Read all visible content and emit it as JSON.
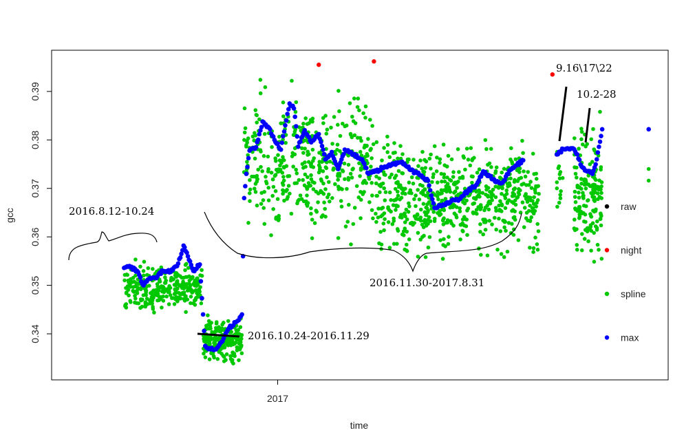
{
  "chart_data": {
    "type": "scatter",
    "title": "",
    "xlabel": "time",
    "ylabel": "gcc",
    "xlim": [
      "2016-06-06",
      "2017-12-28"
    ],
    "ylim": [
      0.3305,
      0.3985
    ],
    "x_ticks": [
      {
        "date": "2017-01-01",
        "label": "2017"
      }
    ],
    "y_ticks": [
      {
        "value": 0.34,
        "label": "0.34"
      },
      {
        "value": 0.35,
        "label": "0.35"
      },
      {
        "value": 0.36,
        "label": "0.36"
      },
      {
        "value": 0.37,
        "label": "0.37"
      },
      {
        "value": 0.38,
        "label": "0.38"
      },
      {
        "value": 0.39,
        "label": "0.39"
      }
    ],
    "grid": false,
    "legend": {
      "position": "right",
      "entries": [
        {
          "name": "raw",
          "color": "#000000"
        },
        {
          "name": "night",
          "color": "#ff0000"
        },
        {
          "name": "spline",
          "color": "#00c800"
        },
        {
          "name": "max",
          "color": "#0000ff"
        }
      ]
    },
    "colors": {
      "raw": "#000000",
      "night": "#ff0000",
      "spline": "#00c800",
      "max": "#0000ff"
    },
    "series": [
      {
        "name": "night",
        "points": [
          {
            "x": "2017-02-08",
            "y": 0.3955
          },
          {
            "x": "2017-03-31",
            "y": 0.3962
          },
          {
            "x": "2017-09-12",
            "y": 0.3935
          }
        ]
      },
      {
        "name": "max",
        "points": [
          {
            "x": "2016-08-12",
            "y": 0.3536
          },
          {
            "x": "2016-08-18",
            "y": 0.3537
          },
          {
            "x": "2016-08-24",
            "y": 0.353
          },
          {
            "x": "2016-08-30",
            "y": 0.35
          },
          {
            "x": "2016-09-03",
            "y": 0.3512
          },
          {
            "x": "2016-09-10",
            "y": 0.3515
          },
          {
            "x": "2016-09-17",
            "y": 0.353
          },
          {
            "x": "2016-09-24",
            "y": 0.3528
          },
          {
            "x": "2016-10-01",
            "y": 0.3545
          },
          {
            "x": "2016-10-06",
            "y": 0.3582
          },
          {
            "x": "2016-10-10",
            "y": 0.356
          },
          {
            "x": "2016-10-15",
            "y": 0.353
          },
          {
            "x": "2016-10-21",
            "y": 0.3543
          },
          {
            "x": "2016-10-26",
            "y": 0.3375
          },
          {
            "x": "2016-10-31",
            "y": 0.3368
          },
          {
            "x": "2016-11-05",
            "y": 0.3368
          },
          {
            "x": "2016-11-11",
            "y": 0.3385
          },
          {
            "x": "2016-11-17",
            "y": 0.3412
          },
          {
            "x": "2016-11-24",
            "y": 0.3425
          },
          {
            "x": "2016-11-29",
            "y": 0.344
          },
          {
            "x": "2016-12-01",
            "y": 0.368
          },
          {
            "x": "2016-12-03",
            "y": 0.373
          },
          {
            "x": "2016-12-06",
            "y": 0.3778
          },
          {
            "x": "2016-12-12",
            "y": 0.3785
          },
          {
            "x": "2016-12-18",
            "y": 0.3838
          },
          {
            "x": "2016-12-24",
            "y": 0.3825
          },
          {
            "x": "2016-12-29",
            "y": 0.38
          },
          {
            "x": "2017-01-04",
            "y": 0.378
          },
          {
            "x": "2017-01-08",
            "y": 0.383
          },
          {
            "x": "2017-01-12",
            "y": 0.3875
          },
          {
            "x": "2017-01-16",
            "y": 0.3865
          },
          {
            "x": "2017-01-20",
            "y": 0.3786
          },
          {
            "x": "2017-01-26",
            "y": 0.382
          },
          {
            "x": "2017-02-01",
            "y": 0.3795
          },
          {
            "x": "2017-02-08",
            "y": 0.3812
          },
          {
            "x": "2017-02-14",
            "y": 0.376
          },
          {
            "x": "2017-02-20",
            "y": 0.3775
          },
          {
            "x": "2017-02-26",
            "y": 0.374
          },
          {
            "x": "2017-03-04",
            "y": 0.378
          },
          {
            "x": "2017-03-12",
            "y": 0.377
          },
          {
            "x": "2017-03-20",
            "y": 0.376
          },
          {
            "x": "2017-03-26",
            "y": 0.373
          },
          {
            "x": "2017-04-02",
            "y": 0.3735
          },
          {
            "x": "2017-04-10",
            "y": 0.3745
          },
          {
            "x": "2017-04-18",
            "y": 0.375
          },
          {
            "x": "2017-04-26",
            "y": 0.3755
          },
          {
            "x": "2017-05-04",
            "y": 0.3738
          },
          {
            "x": "2017-05-12",
            "y": 0.3728
          },
          {
            "x": "2017-05-20",
            "y": 0.3716
          },
          {
            "x": "2017-05-26",
            "y": 0.366
          },
          {
            "x": "2017-06-02",
            "y": 0.3664
          },
          {
            "x": "2017-06-10",
            "y": 0.3673
          },
          {
            "x": "2017-06-18",
            "y": 0.3678
          },
          {
            "x": "2017-06-26",
            "y": 0.3695
          },
          {
            "x": "2017-07-04",
            "y": 0.3708
          },
          {
            "x": "2017-07-10",
            "y": 0.3735
          },
          {
            "x": "2017-07-16",
            "y": 0.3725
          },
          {
            "x": "2017-07-22",
            "y": 0.3713
          },
          {
            "x": "2017-07-28",
            "y": 0.3712
          },
          {
            "x": "2017-08-04",
            "y": 0.3738
          },
          {
            "x": "2017-08-10",
            "y": 0.3748
          },
          {
            "x": "2017-08-16",
            "y": 0.3758
          },
          {
            "x": "2017-09-16",
            "y": 0.377
          },
          {
            "x": "2017-09-22",
            "y": 0.3781
          },
          {
            "x": "2017-10-02",
            "y": 0.3781
          },
          {
            "x": "2017-10-05",
            "y": 0.377
          },
          {
            "x": "2017-10-09",
            "y": 0.3745
          },
          {
            "x": "2017-10-14",
            "y": 0.3735
          },
          {
            "x": "2017-10-19",
            "y": 0.373
          },
          {
            "x": "2017-10-23",
            "y": 0.376
          },
          {
            "x": "2017-10-28",
            "y": 0.3822
          },
          {
            "x": "2017-12-10",
            "y": 0.3822
          }
        ]
      },
      {
        "name": "spline",
        "bands": [
          {
            "x0": "2016-08-12",
            "x1": "2016-10-24",
            "ymin": 0.343,
            "ymax": 0.3558,
            "count": 300
          },
          {
            "x0": "2016-10-24",
            "x1": "2016-11-29",
            "ymin": 0.333,
            "ymax": 0.3445,
            "count": 220
          },
          {
            "x0": "2016-11-30",
            "x1": "2017-03-31",
            "ymin": 0.357,
            "ymax": 0.3925,
            "count": 420
          },
          {
            "x0": "2017-04-01",
            "x1": "2017-08-31",
            "ymin": 0.353,
            "ymax": 0.383,
            "count": 620
          },
          {
            "x0": "2017-09-16",
            "x1": "2017-09-22",
            "ymin": 0.3615,
            "ymax": 0.381,
            "count": 14
          },
          {
            "x0": "2017-10-02",
            "x1": "2017-10-28",
            "ymin": 0.3515,
            "ymax": 0.386,
            "count": 160
          }
        ],
        "points": [
          {
            "x": "2017-12-10",
            "y": 0.374
          },
          {
            "x": "2017-12-10",
            "y": 0.3716
          },
          {
            "x": "2017-01-14",
            "y": 0.3922
          },
          {
            "x": "2016-12-16",
            "y": 0.3924
          },
          {
            "x": "2017-10-26",
            "y": 0.3858
          }
        ]
      }
    ],
    "annotations": [
      {
        "text": "2016.8.12-10.24"
      },
      {
        "text": "2016.10.24-2016.11.29"
      },
      {
        "text": "2016.11.30-2017.8.31"
      },
      {
        "text": "9.16\\17\\22"
      },
      {
        "text": "10.2-28"
      }
    ]
  }
}
